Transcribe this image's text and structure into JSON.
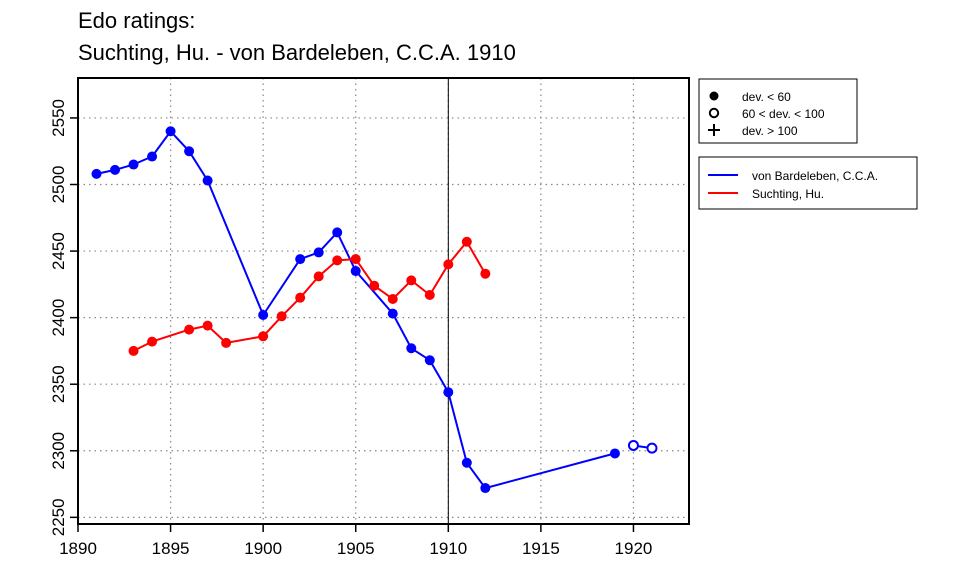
{
  "chart_data": {
    "type": "line",
    "title": "Edo ratings:",
    "subtitle": "Suchting, Hu. - von Bardeleben, C.C.A. 1910",
    "xlabel": "",
    "ylabel": "",
    "xlim": [
      1890,
      1923
    ],
    "ylim": [
      2245,
      2580
    ],
    "x_ticks": [
      1890,
      1895,
      1900,
      1905,
      1910,
      1915,
      1920
    ],
    "y_ticks": [
      2250,
      2300,
      2350,
      2400,
      2450,
      2500,
      2550
    ],
    "grid": "dotted at major ticks",
    "marker_year": 1910,
    "legend_markers": [
      {
        "symbol": "filled-circle",
        "label": "dev. < 60"
      },
      {
        "symbol": "open-circle",
        "label": "60 < dev. < 100"
      },
      {
        "symbol": "plus",
        "label": "dev. > 100"
      }
    ],
    "series": [
      {
        "name": "von Bardeleben, C.C.A.",
        "color": "#0000ff",
        "segments": [
          [
            {
              "x": 1891,
              "y": 2508,
              "dev": "filled"
            },
            {
              "x": 1892,
              "y": 2511,
              "dev": "filled"
            },
            {
              "x": 1893,
              "y": 2515,
              "dev": "filled"
            },
            {
              "x": 1894,
              "y": 2521,
              "dev": "filled"
            },
            {
              "x": 1895,
              "y": 2540,
              "dev": "filled"
            },
            {
              "x": 1896,
              "y": 2525,
              "dev": "filled"
            },
            {
              "x": 1897,
              "y": 2503,
              "dev": "filled"
            },
            {
              "x": 1900,
              "y": 2402,
              "dev": "filled"
            },
            {
              "x": 1902,
              "y": 2444,
              "dev": "filled"
            },
            {
              "x": 1903,
              "y": 2449,
              "dev": "filled"
            },
            {
              "x": 1904,
              "y": 2464,
              "dev": "filled"
            },
            {
              "x": 1905,
              "y": 2435,
              "dev": "filled"
            },
            {
              "x": 1907,
              "y": 2403,
              "dev": "filled"
            },
            {
              "x": 1908,
              "y": 2377,
              "dev": "filled"
            },
            {
              "x": 1909,
              "y": 2368,
              "dev": "filled"
            },
            {
              "x": 1910,
              "y": 2344,
              "dev": "filled"
            },
            {
              "x": 1911,
              "y": 2291,
              "dev": "filled"
            },
            {
              "x": 1912,
              "y": 2272,
              "dev": "filled"
            },
            {
              "x": 1919,
              "y": 2298,
              "dev": "filled"
            }
          ],
          [
            {
              "x": 1920,
              "y": 2304,
              "dev": "open"
            },
            {
              "x": 1921,
              "y": 2302,
              "dev": "open"
            }
          ]
        ]
      },
      {
        "name": "Suchting, Hu.",
        "color": "#ff0000",
        "segments": [
          [
            {
              "x": 1893,
              "y": 2375,
              "dev": "filled"
            },
            {
              "x": 1894,
              "y": 2382,
              "dev": "filled"
            },
            {
              "x": 1896,
              "y": 2391,
              "dev": "filled"
            },
            {
              "x": 1897,
              "y": 2394,
              "dev": "filled"
            },
            {
              "x": 1898,
              "y": 2381,
              "dev": "filled"
            },
            {
              "x": 1900,
              "y": 2386,
              "dev": "filled"
            },
            {
              "x": 1901,
              "y": 2401,
              "dev": "filled"
            },
            {
              "x": 1902,
              "y": 2415,
              "dev": "filled"
            },
            {
              "x": 1903,
              "y": 2431,
              "dev": "filled"
            },
            {
              "x": 1904,
              "y": 2443,
              "dev": "filled"
            },
            {
              "x": 1905,
              "y": 2444,
              "dev": "filled"
            },
            {
              "x": 1906,
              "y": 2424,
              "dev": "filled"
            },
            {
              "x": 1907,
              "y": 2414,
              "dev": "filled"
            },
            {
              "x": 1908,
              "y": 2428,
              "dev": "filled"
            },
            {
              "x": 1909,
              "y": 2417,
              "dev": "filled"
            },
            {
              "x": 1910,
              "y": 2440,
              "dev": "filled"
            },
            {
              "x": 1911,
              "y": 2457,
              "dev": "filled"
            },
            {
              "x": 1912,
              "y": 2433,
              "dev": "filled"
            }
          ]
        ]
      }
    ]
  }
}
